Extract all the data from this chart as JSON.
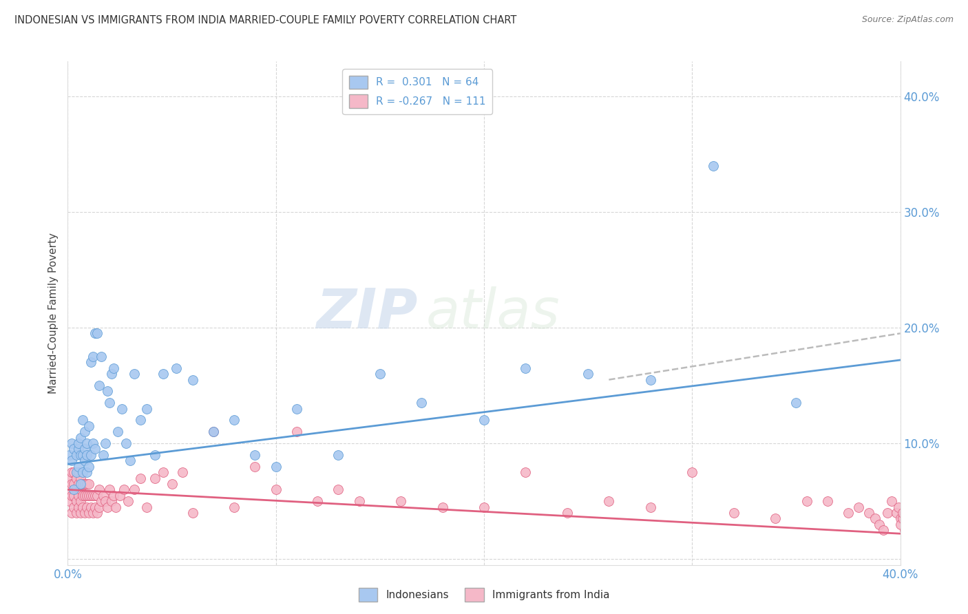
{
  "title": "INDONESIAN VS IMMIGRANTS FROM INDIA MARRIED-COUPLE FAMILY POVERTY CORRELATION CHART",
  "source": "Source: ZipAtlas.com",
  "ylabel": "Married-Couple Family Poverty",
  "xlim": [
    0,
    0.4
  ],
  "ylim": [
    -0.005,
    0.43
  ],
  "color_blue": "#A8C8F0",
  "color_blue_dark": "#5B9BD5",
  "color_pink": "#F5B8C8",
  "color_pink_dark": "#E06080",
  "color_dashed": "#BBBBBB",
  "blue_line_x": [
    0.0,
    0.4
  ],
  "blue_line_y": [
    0.082,
    0.172
  ],
  "pink_line_x": [
    0.0,
    0.4
  ],
  "pink_line_y": [
    0.06,
    0.022
  ],
  "dashed_line_x": [
    0.26,
    0.4
  ],
  "dashed_line_y": [
    0.155,
    0.195
  ],
  "watermark_zip": "ZIP",
  "watermark_atlas": "atlas",
  "background_color": "#FFFFFF",
  "grid_color": "#CCCCCC",
  "tick_color": "#5B9BD5",
  "indonesians_x": [
    0.001,
    0.002,
    0.002,
    0.003,
    0.003,
    0.004,
    0.004,
    0.005,
    0.005,
    0.005,
    0.006,
    0.006,
    0.006,
    0.007,
    0.007,
    0.007,
    0.008,
    0.008,
    0.008,
    0.009,
    0.009,
    0.009,
    0.01,
    0.01,
    0.011,
    0.011,
    0.012,
    0.012,
    0.013,
    0.013,
    0.014,
    0.015,
    0.016,
    0.017,
    0.018,
    0.019,
    0.02,
    0.021,
    0.022,
    0.024,
    0.026,
    0.028,
    0.03,
    0.032,
    0.035,
    0.038,
    0.042,
    0.046,
    0.052,
    0.06,
    0.07,
    0.08,
    0.09,
    0.1,
    0.11,
    0.13,
    0.15,
    0.17,
    0.2,
    0.22,
    0.25,
    0.28,
    0.31,
    0.35
  ],
  "indonesians_y": [
    0.09,
    0.085,
    0.1,
    0.06,
    0.095,
    0.075,
    0.09,
    0.08,
    0.095,
    0.1,
    0.065,
    0.09,
    0.105,
    0.075,
    0.09,
    0.12,
    0.085,
    0.095,
    0.11,
    0.075,
    0.09,
    0.1,
    0.08,
    0.115,
    0.09,
    0.17,
    0.1,
    0.175,
    0.095,
    0.195,
    0.195,
    0.15,
    0.175,
    0.09,
    0.1,
    0.145,
    0.135,
    0.16,
    0.165,
    0.11,
    0.13,
    0.1,
    0.085,
    0.16,
    0.12,
    0.13,
    0.09,
    0.16,
    0.165,
    0.155,
    0.11,
    0.12,
    0.09,
    0.08,
    0.13,
    0.09,
    0.16,
    0.135,
    0.12,
    0.165,
    0.16,
    0.155,
    0.34,
    0.135
  ],
  "india_x": [
    0.001,
    0.001,
    0.001,
    0.002,
    0.002,
    0.002,
    0.002,
    0.003,
    0.003,
    0.003,
    0.003,
    0.004,
    0.004,
    0.004,
    0.004,
    0.005,
    0.005,
    0.005,
    0.005,
    0.006,
    0.006,
    0.006,
    0.006,
    0.007,
    0.007,
    0.007,
    0.008,
    0.008,
    0.008,
    0.009,
    0.009,
    0.009,
    0.01,
    0.01,
    0.01,
    0.011,
    0.011,
    0.012,
    0.012,
    0.013,
    0.013,
    0.014,
    0.014,
    0.015,
    0.015,
    0.016,
    0.017,
    0.018,
    0.019,
    0.02,
    0.021,
    0.022,
    0.023,
    0.025,
    0.027,
    0.029,
    0.032,
    0.035,
    0.038,
    0.042,
    0.046,
    0.05,
    0.055,
    0.06,
    0.07,
    0.08,
    0.09,
    0.1,
    0.11,
    0.12,
    0.13,
    0.14,
    0.16,
    0.18,
    0.2,
    0.22,
    0.24,
    0.26,
    0.28,
    0.3,
    0.32,
    0.34,
    0.355,
    0.365,
    0.375,
    0.38,
    0.385,
    0.388,
    0.39,
    0.392,
    0.394,
    0.396,
    0.398,
    0.399,
    0.4,
    0.4,
    0.401,
    0.401,
    0.402,
    0.403,
    0.404,
    0.405,
    0.406,
    0.407,
    0.408,
    0.409,
    0.41,
    0.411,
    0.412,
    0.413,
    0.414
  ],
  "india_y": [
    0.05,
    0.06,
    0.07,
    0.04,
    0.055,
    0.065,
    0.075,
    0.045,
    0.055,
    0.065,
    0.075,
    0.04,
    0.05,
    0.06,
    0.07,
    0.045,
    0.055,
    0.065,
    0.075,
    0.04,
    0.05,
    0.06,
    0.07,
    0.045,
    0.055,
    0.065,
    0.04,
    0.055,
    0.065,
    0.045,
    0.055,
    0.065,
    0.04,
    0.055,
    0.065,
    0.045,
    0.055,
    0.04,
    0.055,
    0.045,
    0.055,
    0.04,
    0.055,
    0.045,
    0.06,
    0.05,
    0.055,
    0.05,
    0.045,
    0.06,
    0.05,
    0.055,
    0.045,
    0.055,
    0.06,
    0.05,
    0.06,
    0.07,
    0.045,
    0.07,
    0.075,
    0.065,
    0.075,
    0.04,
    0.11,
    0.045,
    0.08,
    0.06,
    0.11,
    0.05,
    0.06,
    0.05,
    0.05,
    0.045,
    0.045,
    0.075,
    0.04,
    0.05,
    0.045,
    0.075,
    0.04,
    0.035,
    0.05,
    0.05,
    0.04,
    0.045,
    0.04,
    0.035,
    0.03,
    0.025,
    0.04,
    0.05,
    0.04,
    0.045,
    0.035,
    0.03,
    0.035,
    0.04,
    0.025,
    0.03,
    0.035,
    0.025,
    0.03,
    0.035,
    0.025,
    0.03,
    0.025,
    0.03,
    0.025,
    0.03,
    0.025
  ]
}
